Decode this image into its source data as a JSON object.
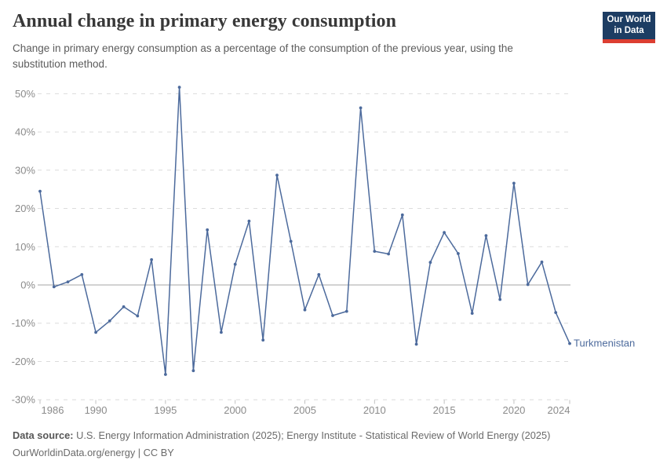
{
  "header": {
    "title": "Annual change in primary energy consumption",
    "subtitle": "Change in primary energy consumption as a percentage of the consumption of the previous year, using the substitution method.",
    "logo": {
      "line1": "Our World",
      "line2": "in Data",
      "bg_color": "#1d3d63",
      "accent_color": "#dc3e32"
    }
  },
  "footer": {
    "source_label": "Data source:",
    "source_text": " U.S. Energy Information Administration (2025); Energy Institute - Statistical Review of World Energy (2025)",
    "license_line": "OurWorldinData.org/energy | CC BY"
  },
  "chart_data": {
    "type": "line",
    "title": "Annual change in primary energy consumption",
    "xlabel": "",
    "ylabel": "",
    "ylim": [
      -30,
      50
    ],
    "xlim": [
      1986,
      2024
    ],
    "grid": "horizontal dashed gridlines, solid zero line",
    "legend": "label at end of line",
    "y_ticks": [
      50,
      40,
      30,
      20,
      10,
      0,
      -10,
      -20,
      -30
    ],
    "y_tick_labels": [
      "50%",
      "40%",
      "30%",
      "20%",
      "10%",
      "0%",
      "-10%",
      "-20%",
      "-30%"
    ],
    "x_ticks": [
      1986,
      1990,
      1995,
      2000,
      2005,
      2010,
      2015,
      2020,
      2024
    ],
    "x_tick_labels": [
      "1986",
      "1990",
      "1995",
      "2000",
      "2005",
      "2010",
      "2015",
      "2020",
      "2024"
    ],
    "series": [
      {
        "name": "Turkmenistan",
        "x": [
          1986,
          1987,
          1988,
          1989,
          1990,
          1991,
          1992,
          1993,
          1994,
          1995,
          1996,
          1997,
          1998,
          1999,
          2000,
          2001,
          2002,
          2003,
          2004,
          2005,
          2006,
          2007,
          2008,
          2009,
          2010,
          2011,
          2012,
          2013,
          2014,
          2015,
          2016,
          2017,
          2018,
          2019,
          2020,
          2021,
          2022,
          2023,
          2024
        ],
        "values": [
          24.5,
          -0.5,
          0.8,
          2.7,
          -12.4,
          -9.4,
          -5.7,
          -8.1,
          6.6,
          -23.4,
          51.7,
          -22.4,
          14.4,
          -12.4,
          5.4,
          16.7,
          -14.4,
          28.7,
          11.4,
          -6.5,
          2.7,
          -8.0,
          -6.9,
          46.3,
          8.8,
          8.1,
          18.3,
          -15.5,
          5.9,
          13.7,
          8.2,
          -7.4,
          12.9,
          -3.8,
          26.6,
          0.1,
          6.0,
          -7.2,
          -15.3
        ]
      }
    ],
    "colors": {
      "line": "#4c6a9c",
      "grid": "#dcdcdc",
      "zero_line": "#a5a5a5",
      "tick": "#c2c2c2",
      "axis_text": "#8b8b8b"
    }
  }
}
